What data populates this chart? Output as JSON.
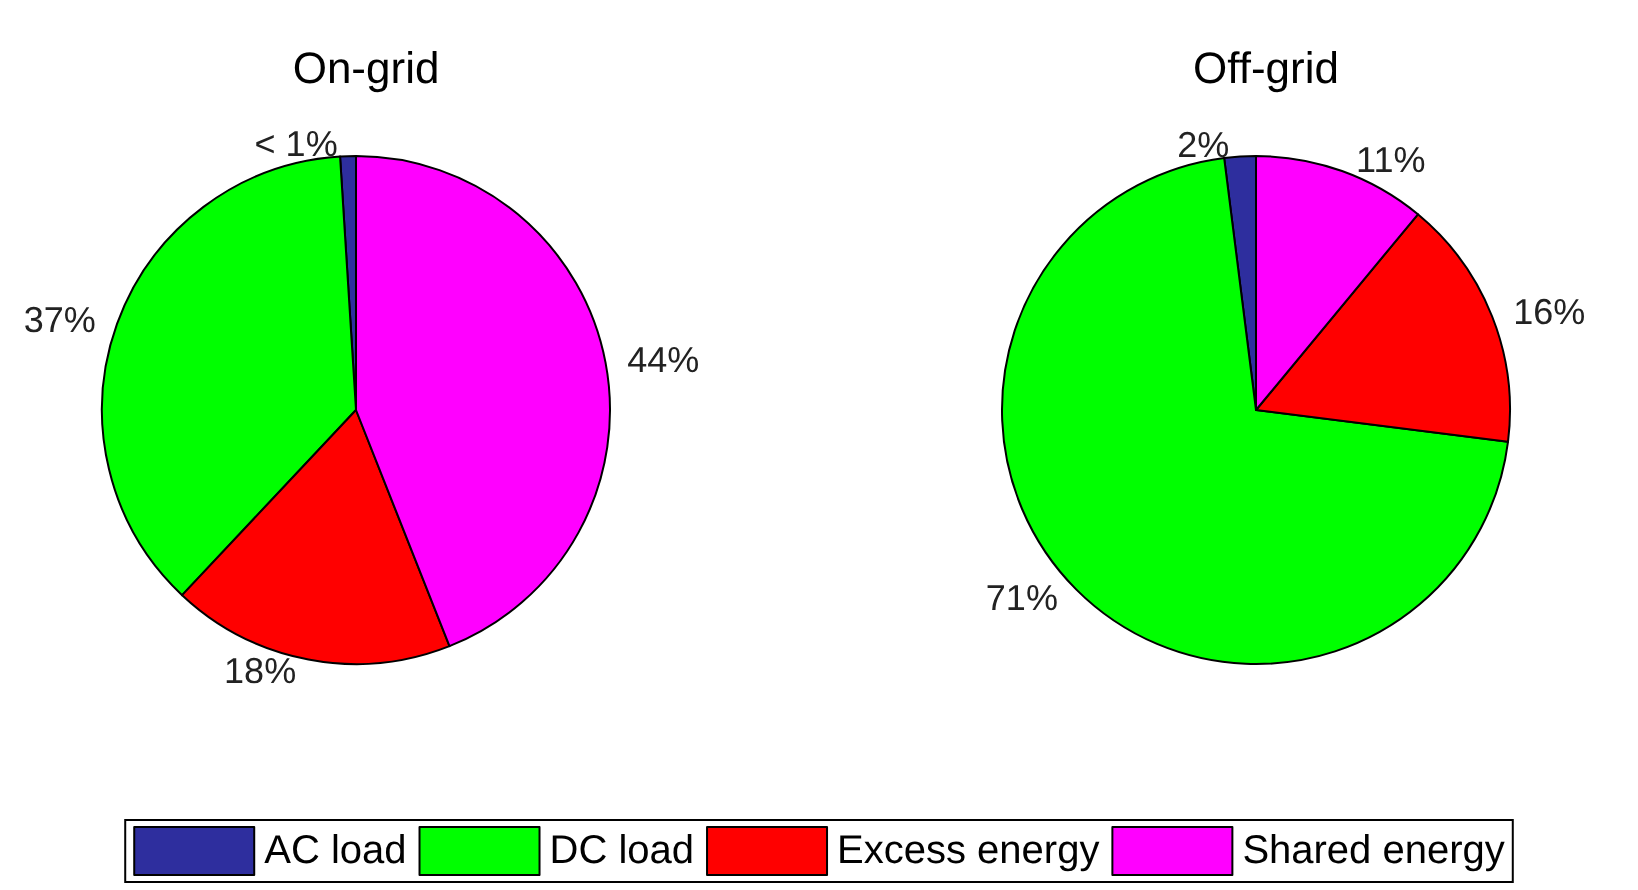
{
  "chart_data": [
    {
      "type": "pie",
      "title": "On-grid",
      "categories": [
        "AC load",
        "DC load",
        "Excess energy",
        "Shared energy"
      ],
      "values": [
        1,
        37,
        18,
        44
      ],
      "value_labels": [
        "< 1%",
        "37%",
        "18%",
        "44%"
      ],
      "colors": [
        "#2e2e9e",
        "#00ff00",
        "#ff0000",
        "#ff00ff"
      ],
      "legend": "bottom"
    },
    {
      "type": "pie",
      "title": "Off-grid",
      "categories": [
        null,
        null,
        null,
        null
      ],
      "values": [
        2,
        71,
        16,
        11
      ],
      "value_labels": [
        "2%",
        "71%",
        "16%",
        "11%"
      ],
      "colors": [
        "#2e2e9e",
        "#00ff00",
        "#ff0000",
        "#ff00ff"
      ]
    }
  ]
}
